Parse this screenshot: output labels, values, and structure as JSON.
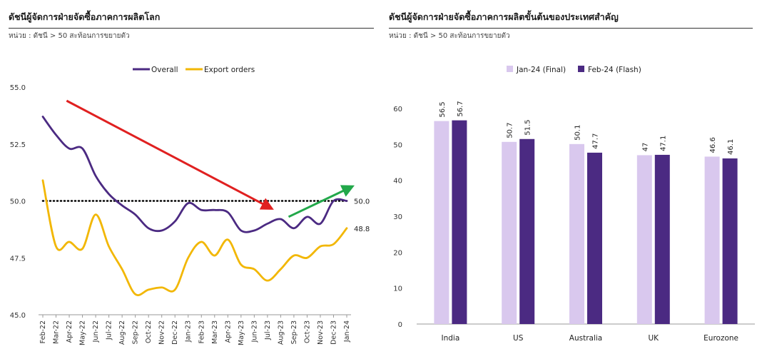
{
  "left_panel": {
    "title": "ดัชนีผู้จัดการฝ่ายจัดซื้อภาคการผลิตโลก",
    "unit": "หน่วย : ดัชนี > 50 สะท้อนการขยายตัว"
  },
  "right_panel": {
    "title": "ดัชนีผู้จัดการฝ่ายจัดซื้อภาคการผลิตขั้นต้นของประเทศสำคัญ",
    "unit": "หน่วย : ดัชนี > 50 สะท้อนการขยายตัว"
  },
  "chart_data": [
    {
      "type": "line",
      "legend_placement": "top",
      "grid": false,
      "ylim": [
        45.0,
        55.0
      ],
      "yticks": [
        "45.0",
        "47.5",
        "50.0",
        "52.5",
        "55.0"
      ],
      "x": [
        "Feb-22",
        "Mar-22",
        "Apr-22",
        "May-22",
        "Jun-22",
        "Jul-22",
        "Aug-22",
        "Sep-22",
        "Oct-22",
        "Nov-22",
        "Dec-22",
        "Jan-23",
        "Feb-23",
        "Mar-23",
        "Apr-23",
        "May-23",
        "Jun-23",
        "Jul-23",
        "Aug-23",
        "Sep-23",
        "Oct-23",
        "Nov-23",
        "Dec-23",
        "Jan-24"
      ],
      "series": [
        {
          "name": "Overall",
          "color": "#4b2a82",
          "values": [
            53.7,
            52.9,
            52.3,
            52.3,
            51.1,
            50.3,
            49.8,
            49.4,
            48.8,
            48.7,
            49.1,
            49.9,
            49.6,
            49.6,
            49.5,
            48.7,
            48.7,
            49.0,
            49.2,
            48.8,
            49.3,
            49.0,
            50.0,
            50.0
          ]
        },
        {
          "name": "Export orders",
          "color": "#f2b705",
          "values": [
            50.9,
            48.0,
            48.2,
            47.9,
            49.4,
            48.0,
            47.0,
            45.9,
            46.1,
            46.2,
            46.1,
            47.5,
            48.2,
            47.6,
            48.3,
            47.2,
            47.0,
            46.5,
            47.0,
            47.6,
            47.5,
            48.0,
            48.1,
            48.8
          ]
        }
      ],
      "reference_line": 50.0,
      "end_labels": [
        "50.0",
        "48.8"
      ],
      "annotations": [
        {
          "type": "arrow",
          "color": "#e02020",
          "trend": "down"
        },
        {
          "type": "arrow",
          "color": "#22a84a",
          "trend": "up"
        }
      ]
    },
    {
      "type": "bar",
      "legend_placement": "top",
      "grid": false,
      "ylim": [
        0,
        60
      ],
      "yticks": [
        "0",
        "10",
        "20",
        "30",
        "40",
        "50",
        "60"
      ],
      "categories": [
        "India",
        "US",
        "Australia",
        "UK",
        "Eurozone"
      ],
      "series": [
        {
          "name": "Jan-24 (Final)",
          "color": "#d9c8ee",
          "values": [
            56.5,
            50.7,
            50.1,
            47,
            46.6
          ],
          "labels": [
            "56.5",
            "50.7",
            "50.1",
            "47",
            "46.6"
          ]
        },
        {
          "name": "Feb-24 (Flash)",
          "color": "#4b2a82",
          "values": [
            56.7,
            51.5,
            47.7,
            47.1,
            46.1
          ],
          "labels": [
            "56.7",
            "51.5",
            "47.7",
            "47.1",
            "46.1"
          ]
        }
      ]
    }
  ]
}
